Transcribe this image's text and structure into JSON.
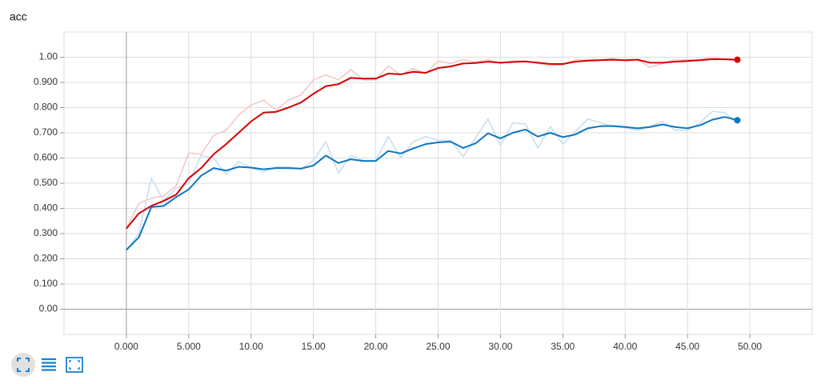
{
  "chart_data": {
    "type": "line",
    "title": "acc",
    "x": [
      0,
      1,
      2,
      3,
      4,
      5,
      6,
      7,
      8,
      9,
      10,
      11,
      12,
      13,
      14,
      15,
      16,
      17,
      18,
      19,
      20,
      21,
      22,
      23,
      24,
      25,
      26,
      27,
      28,
      29,
      30,
      31,
      32,
      33,
      34,
      35,
      36,
      37,
      38,
      39,
      40,
      41,
      42,
      43,
      44,
      45,
      46,
      47,
      48,
      49
    ],
    "series": [
      {
        "color": "#f6c4c4",
        "line_width": 1.5,
        "end_marker": false,
        "values": [
          0.32,
          0.42,
          0.44,
          0.45,
          0.49,
          0.62,
          0.615,
          0.69,
          0.71,
          0.77,
          0.81,
          0.83,
          0.79,
          0.83,
          0.85,
          0.91,
          0.93,
          0.91,
          0.95,
          0.91,
          0.91,
          0.965,
          0.93,
          0.955,
          0.935,
          0.985,
          0.975,
          0.99,
          0.98,
          0.99,
          0.975,
          0.985,
          0.985,
          0.975,
          0.965,
          0.97,
          0.99,
          0.99,
          0.99,
          0.995,
          0.985,
          0.99,
          0.96,
          0.975,
          0.99,
          0.99,
          0.99,
          1.0,
          0.99,
          0.985
        ]
      },
      {
        "color": "#c3def0",
        "line_width": 1.5,
        "end_marker": false,
        "values": [
          0.235,
          0.3,
          0.52,
          0.43,
          0.48,
          0.5,
          0.61,
          0.6,
          0.535,
          0.585,
          0.56,
          0.545,
          0.565,
          0.565,
          0.555,
          0.59,
          0.665,
          0.54,
          0.61,
          0.59,
          0.59,
          0.685,
          0.6,
          0.665,
          0.685,
          0.67,
          0.67,
          0.605,
          0.68,
          0.755,
          0.65,
          0.74,
          0.735,
          0.64,
          0.725,
          0.655,
          0.705,
          0.755,
          0.74,
          0.725,
          0.72,
          0.71,
          0.725,
          0.745,
          0.71,
          0.71,
          0.74,
          0.785,
          0.78,
          0.735
        ]
      },
      {
        "color": "#d40000",
        "line_width": 2,
        "end_marker": true,
        "values": [
          0.32,
          0.38,
          0.41,
          0.43,
          0.455,
          0.52,
          0.56,
          0.615,
          0.655,
          0.7,
          0.745,
          0.78,
          0.783,
          0.8,
          0.82,
          0.855,
          0.885,
          0.893,
          0.918,
          0.915,
          0.915,
          0.935,
          0.932,
          0.942,
          0.938,
          0.957,
          0.963,
          0.975,
          0.977,
          0.982,
          0.978,
          0.981,
          0.983,
          0.978,
          0.973,
          0.973,
          0.982,
          0.986,
          0.988,
          0.99,
          0.988,
          0.99,
          0.978,
          0.978,
          0.982,
          0.985,
          0.988,
          0.992,
          0.992,
          0.99
        ]
      },
      {
        "color": "#0b77c0",
        "line_width": 2,
        "end_marker": true,
        "values": [
          0.235,
          0.285,
          0.405,
          0.41,
          0.445,
          0.475,
          0.53,
          0.56,
          0.55,
          0.565,
          0.562,
          0.555,
          0.56,
          0.56,
          0.558,
          0.57,
          0.61,
          0.58,
          0.595,
          0.588,
          0.588,
          0.628,
          0.618,
          0.638,
          0.655,
          0.662,
          0.665,
          0.64,
          0.658,
          0.698,
          0.678,
          0.7,
          0.713,
          0.685,
          0.7,
          0.683,
          0.693,
          0.718,
          0.726,
          0.727,
          0.723,
          0.718,
          0.723,
          0.733,
          0.723,
          0.718,
          0.73,
          0.752,
          0.763,
          0.75
        ]
      }
    ],
    "xlim": [
      -5,
      55
    ],
    "ylim": [
      -0.1,
      1.1
    ],
    "xticks": [
      {
        "value": 0,
        "label": "0.000"
      },
      {
        "value": 5,
        "label": "5.000"
      },
      {
        "value": 10,
        "label": "10.00"
      },
      {
        "value": 15,
        "label": "15.00"
      },
      {
        "value": 20,
        "label": "20.00"
      },
      {
        "value": 25,
        "label": "25.00"
      },
      {
        "value": 30,
        "label": "30.00"
      },
      {
        "value": 35,
        "label": "35.00"
      },
      {
        "value": 40,
        "label": "40.00"
      },
      {
        "value": 45,
        "label": "45.00"
      },
      {
        "value": 50,
        "label": "50.00"
      }
    ],
    "yticks": [
      {
        "value": 0,
        "label": "0.00"
      },
      {
        "value": 0.1,
        "label": "0.100"
      },
      {
        "value": 0.2,
        "label": "0.200"
      },
      {
        "value": 0.3,
        "label": "0.300"
      },
      {
        "value": 0.4,
        "label": "0.400"
      },
      {
        "value": 0.5,
        "label": "0.500"
      },
      {
        "value": 0.6,
        "label": "0.600"
      },
      {
        "value": 0.7,
        "label": "0.700"
      },
      {
        "value": 0.8,
        "label": "0.800"
      },
      {
        "value": 0.9,
        "label": "0.900"
      },
      {
        "value": 1,
        "label": "1.00"
      }
    ],
    "grid": true
  }
}
